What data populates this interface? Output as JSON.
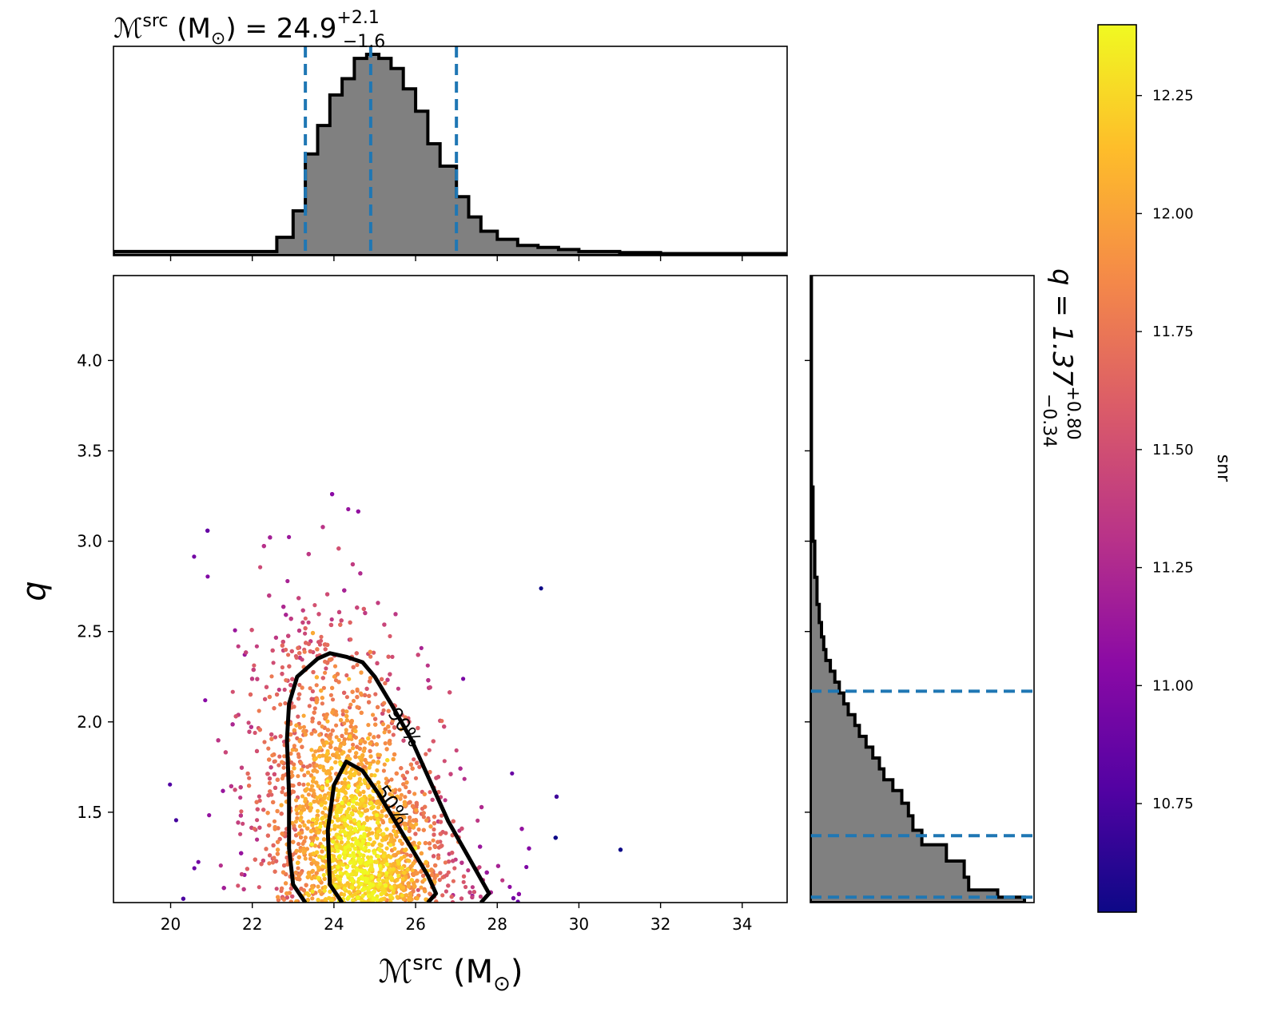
{
  "chart_data": {
    "type": "scatter",
    "top_title": {
      "prefix": "ℳ",
      "sup": "src",
      "mid": " (M",
      "sun": "⊙",
      "rest": ") = 24.9",
      "plus": "+2.1",
      "minus": "−1.6"
    },
    "right_title": {
      "prefix": "q = 1.37",
      "plus": "+0.80",
      "minus": "−0.34"
    },
    "xlabel": {
      "prefix": "ℳ",
      "sup": "src",
      "mid": " (M",
      "sun": "⊙",
      "rest": ")"
    },
    "ylabel": "q",
    "colorbar_label": "snr",
    "x_ticks": [
      "20",
      "22",
      "24",
      "26",
      "28",
      "30",
      "32",
      "34"
    ],
    "y_ticks": [
      "1.5",
      "2.0",
      "2.5",
      "3.0",
      "3.5",
      "4.0"
    ],
    "colorbar_ticks": [
      "10.75",
      "11.00",
      "11.25",
      "11.50",
      "11.75",
      "12.00",
      "12.25"
    ],
    "xlim": [
      18.6,
      35.1
    ],
    "ylim": [
      1.0,
      4.47
    ],
    "colorbar_range": [
      10.52,
      12.4
    ],
    "colormap": [
      "#0d0887",
      "#5302a3",
      "#8b0aa5",
      "#b83289",
      "#db5c68",
      "#f48849",
      "#febd2a",
      "#f0f921"
    ],
    "marginal_line_color": "#1f77b4",
    "hist_fill_color": "#808080",
    "mchirp_median": 24.9,
    "mchirp_interval": [
      23.3,
      27.0
    ],
    "q_median": 1.37,
    "q_interval": [
      1.03,
      2.17
    ],
    "mchirp_hist": {
      "edges": [
        18.6,
        22.6,
        23.0,
        23.3,
        23.6,
        23.9,
        24.2,
        24.5,
        24.8,
        25.1,
        25.4,
        25.7,
        26.0,
        26.3,
        26.6,
        27.0,
        27.3,
        27.6,
        28.0,
        28.5,
        29.0,
        29.5,
        30.0,
        31.0,
        32.0,
        35.1
      ],
      "counts": [
        0.02,
        0.09,
        0.22,
        0.5,
        0.64,
        0.79,
        0.87,
        0.97,
        0.99,
        0.97,
        0.92,
        0.82,
        0.71,
        0.55,
        0.44,
        0.29,
        0.19,
        0.12,
        0.08,
        0.05,
        0.04,
        0.03,
        0.02,
        0.015,
        0.01
      ]
    },
    "q_hist": {
      "edges": [
        1.0,
        1.03,
        1.07,
        1.14,
        1.23,
        1.32,
        1.4,
        1.48,
        1.55,
        1.62,
        1.68,
        1.74,
        1.8,
        1.86,
        1.92,
        1.98,
        2.04,
        2.1,
        2.16,
        2.22,
        2.28,
        2.34,
        2.4,
        2.47,
        2.55,
        2.65,
        2.8,
        3.0,
        3.3,
        4.47
      ],
      "counts": [
        0.96,
        0.84,
        0.71,
        0.69,
        0.61,
        0.5,
        0.46,
        0.44,
        0.41,
        0.37,
        0.33,
        0.31,
        0.28,
        0.25,
        0.22,
        0.2,
        0.17,
        0.15,
        0.13,
        0.11,
        0.09,
        0.07,
        0.06,
        0.05,
        0.04,
        0.03,
        0.02,
        0.012,
        0.005
      ]
    },
    "contours": [
      {
        "label": "90%",
        "points": [
          [
            23.3,
            1.0
          ],
          [
            23.0,
            1.1
          ],
          [
            22.9,
            1.3
          ],
          [
            22.9,
            1.6
          ],
          [
            22.85,
            1.9
          ],
          [
            22.9,
            2.1
          ],
          [
            23.1,
            2.25
          ],
          [
            23.6,
            2.35
          ],
          [
            23.9,
            2.38
          ],
          [
            24.3,
            2.36
          ],
          [
            24.7,
            2.33
          ],
          [
            25.0,
            2.25
          ],
          [
            25.4,
            2.1
          ],
          [
            25.9,
            1.9
          ],
          [
            26.4,
            1.65
          ],
          [
            26.8,
            1.45
          ],
          [
            27.3,
            1.25
          ],
          [
            27.8,
            1.05
          ],
          [
            27.6,
            1.0
          ]
        ]
      },
      {
        "label": "50%",
        "points": [
          [
            24.2,
            1.0
          ],
          [
            23.9,
            1.1
          ],
          [
            23.85,
            1.4
          ],
          [
            24.0,
            1.65
          ],
          [
            24.3,
            1.78
          ],
          [
            24.7,
            1.73
          ],
          [
            25.1,
            1.6
          ],
          [
            25.5,
            1.45
          ],
          [
            25.9,
            1.3
          ],
          [
            26.3,
            1.15
          ],
          [
            26.5,
            1.05
          ],
          [
            26.3,
            1.0
          ]
        ]
      }
    ],
    "contour_labels": [
      {
        "text": "90%",
        "x": 25.6,
        "y": 1.95
      },
      {
        "text": "50%",
        "x": 25.3,
        "y": 1.52
      }
    ]
  }
}
